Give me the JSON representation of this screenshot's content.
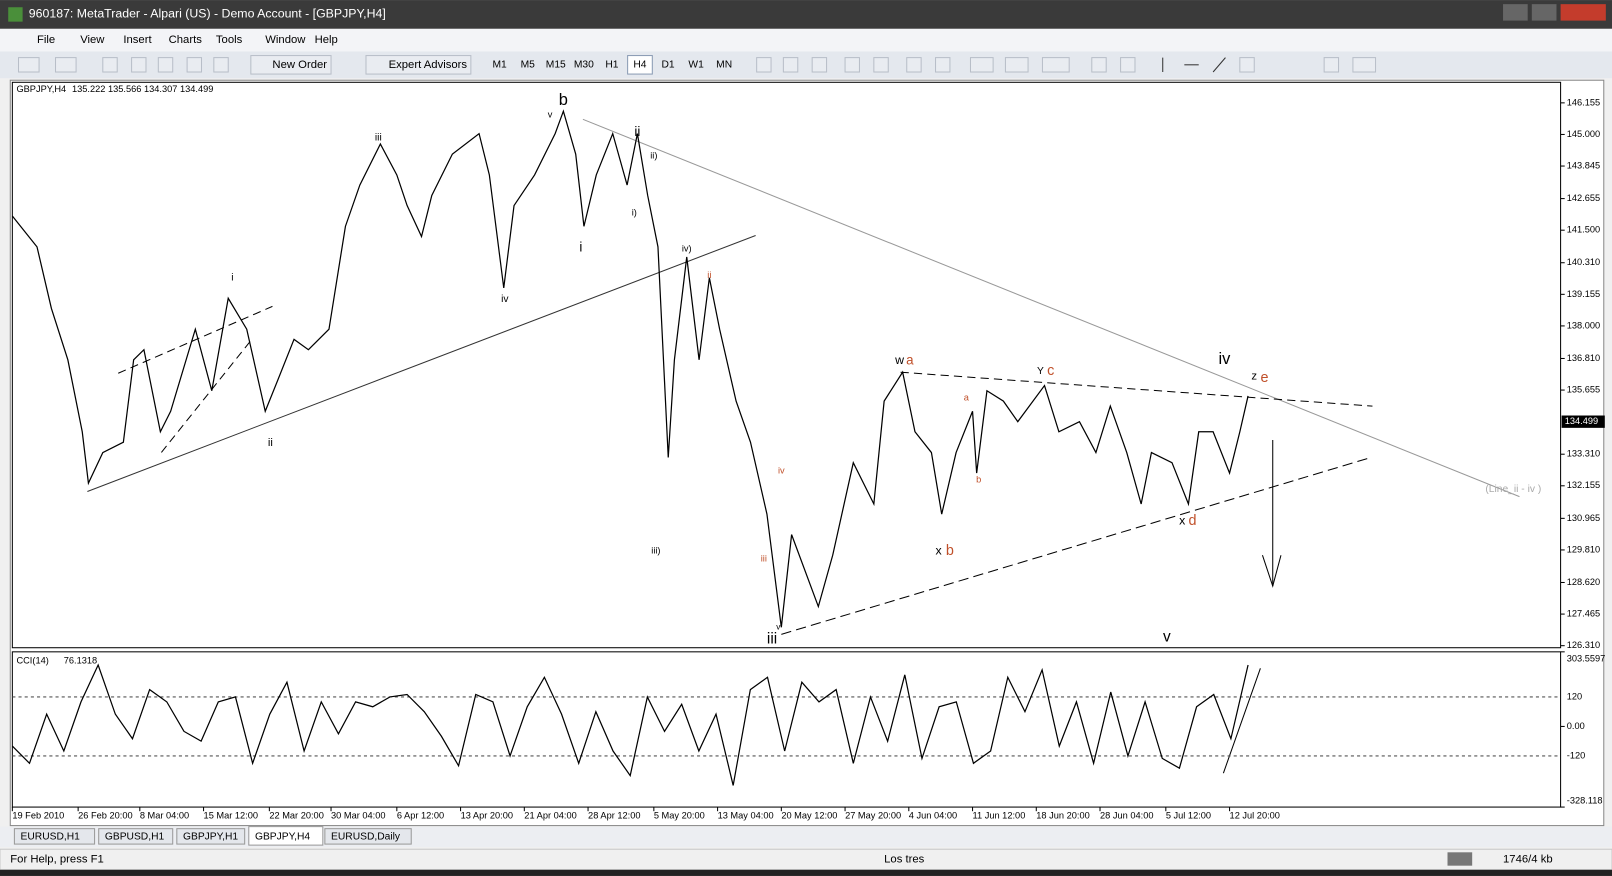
{
  "window_title": "960187: MetaTrader - Alpari (US) - Demo Account - [GBPJPY,H4]",
  "menu": [
    "File",
    "View",
    "Insert",
    "Charts",
    "Tools",
    "Window",
    "Help"
  ],
  "toolbar": {
    "new_order": "New Order",
    "expert_advisors": "Expert Advisors",
    "timeframes": [
      "M1",
      "M5",
      "M15",
      "M30",
      "H1",
      "H4",
      "D1",
      "W1",
      "MN"
    ],
    "active_timeframe": 5
  },
  "chart_data": [
    {
      "type": "line",
      "title": "GBPJPY,H4",
      "subtitle": "135.222 135.566 134.307 134.499",
      "color": "#000000",
      "x": [
        0,
        12,
        19,
        27,
        34,
        37,
        44,
        54,
        59,
        64,
        72,
        77,
        89,
        97,
        105,
        114,
        123,
        129,
        137,
        144,
        154,
        162,
        169,
        179,
        187,
        192,
        199,
        204,
        214,
        227,
        232,
        239,
        244,
        254,
        264,
        268,
        274,
        278,
        284,
        292,
        299,
        304,
        309,
        314,
        319,
        322,
        328,
        334,
        339,
        344,
        352,
        359,
        367,
        374,
        379,
        392,
        399,
        409,
        419,
        424,
        433,
        439,
        447,
        452,
        459,
        467,
        469,
        474,
        482,
        489,
        502,
        509,
        519,
        527,
        534,
        542,
        549,
        554,
        564,
        572,
        577,
        584,
        592,
        597,
        601
      ],
      "values": [
        142.02,
        140.89,
        138.64,
        136.76,
        134.13,
        132.25,
        133.37,
        133.75,
        136.76,
        137.13,
        134.13,
        134.88,
        137.88,
        135.63,
        139.01,
        137.88,
        134.88,
        136.0,
        137.51,
        137.13,
        137.88,
        141.64,
        143.15,
        144.65,
        143.52,
        142.4,
        141.27,
        142.77,
        144.28,
        145.03,
        143.52,
        139.39,
        142.4,
        143.52,
        145.03,
        145.85,
        144.28,
        141.64,
        143.52,
        145.03,
        143.15,
        145.03,
        142.77,
        140.89,
        133.19,
        136.76,
        140.52,
        136.76,
        139.76,
        137.88,
        135.25,
        133.75,
        131.12,
        126.98,
        130.37,
        127.74,
        129.62,
        133.0,
        131.49,
        135.25,
        136.31,
        134.13,
        133.37,
        131.12,
        133.37,
        134.88,
        132.62,
        135.63,
        135.25,
        134.5,
        135.82,
        134.13,
        134.5,
        133.37,
        135.07,
        133.37,
        131.49,
        133.37,
        133.0,
        131.49,
        134.13,
        134.13,
        132.62,
        134.13,
        135.44
      ],
      "xlim": [
        0,
        753
      ],
      "ylim": [
        126.235,
        146.907
      ],
      "yticks": [
        146.155,
        {
          "value": 145,
          "label": "145.000"
        },
        143.845,
        142.655,
        {
          "value": 141.5,
          "label": "141.500"
        },
        {
          "value": 140.31,
          "label": "140.310"
        },
        139.155,
        {
          "value": 138,
          "label": "138.000"
        },
        {
          "value": 136.81,
          "label": "136.810"
        },
        135.655,
        {
          "value": 133.31,
          "label": "133.310"
        },
        132.155,
        130.965,
        {
          "value": 129.81,
          "label": "129.810"
        },
        {
          "value": 128.62,
          "label": "128.620"
        },
        127.465,
        {
          "value": 126.31,
          "label": "126.310"
        }
      ],
      "current_price": 134.499,
      "xticks": [
        {
          "value": 0,
          "label": "19 Feb 2010"
        },
        {
          "value": 32,
          "label": "26 Feb 20:00"
        },
        {
          "value": 62,
          "label": "8 Mar 04:00"
        },
        {
          "value": 93,
          "label": "15 Mar 12:00"
        },
        {
          "value": 125,
          "label": "22 Mar 20:00"
        },
        {
          "value": 155,
          "label": "30 Mar 04:00"
        },
        {
          "value": 187,
          "label": "6 Apr 12:00"
        },
        {
          "value": 218,
          "label": "13 Apr 20:00"
        },
        {
          "value": 249,
          "label": "21 Apr 04:00"
        },
        {
          "value": 280,
          "label": "28 Apr 12:00"
        },
        {
          "value": 312,
          "label": "5 May 20:00"
        },
        {
          "value": 343,
          "label": "13 May 04:00"
        },
        {
          "value": 374,
          "label": "20 May 12:00"
        },
        {
          "value": 405,
          "label": "27 May 20:00"
        },
        {
          "value": 436,
          "label": "4 Jun 04:00"
        },
        {
          "value": 467,
          "label": "11 Jun 12:00"
        },
        {
          "value": 498,
          "label": "18 Jun 20:00"
        },
        {
          "value": 529,
          "label": "28 Jun 04:00"
        },
        {
          "value": 561,
          "label": "5 Jul 12:00"
        },
        {
          "value": 592,
          "label": "12 Jul 20:00"
        }
      ],
      "annotations": [
        "b",
        "v",
        "iii",
        "ii",
        "ii)",
        "i)",
        "i",
        "iv)",
        "iv",
        "i",
        "ii",
        "iii)",
        "ii",
        "iv",
        "iii",
        "v",
        "iii",
        "w",
        "a",
        "a",
        "b",
        "x",
        "b",
        "Y",
        "c",
        "iv",
        "z",
        "e",
        "x",
        "d",
        "v",
        "(Line_ii - iv )"
      ]
    },
    {
      "type": "line",
      "title": "CCI(14)",
      "subtitle": "76.1318",
      "color": "#000000",
      "values": [
        -80,
        -150,
        50,
        -100,
        100,
        250,
        50,
        -50,
        150,
        100,
        -20,
        -60,
        100,
        120,
        -150,
        50,
        180,
        -100,
        100,
        -30,
        100,
        80,
        120,
        130,
        60,
        -40,
        -160,
        130,
        100,
        -120,
        80,
        200,
        50,
        -150,
        60,
        -100,
        -200,
        120,
        -20,
        90,
        -100,
        50,
        -240,
        150,
        200,
        -100,
        180,
        100,
        150,
        -150,
        120,
        -60,
        210,
        -130,
        80,
        100,
        -150,
        -100,
        200,
        60,
        230,
        -80,
        100,
        -150,
        140,
        -120,
        100,
        -130,
        -170,
        80,
        130,
        -50,
        250
      ],
      "ylim": [
        -328.118,
        303.5597
      ],
      "yticks": [
        303.5597,
        120,
        {
          "value": 0,
          "label": "0.00"
        },
        -120,
        -328.118
      ]
    }
  ],
  "tabs": [
    "EURUSD,H1",
    "GBPUSD,H1",
    "GBPJPY,H1",
    "GBPJPY,H4",
    "EURUSD,Daily"
  ],
  "active_tab": 3,
  "status": {
    "help": "For Help, press F1",
    "profile": "Los tres",
    "traffic": "1746/4 kb"
  }
}
